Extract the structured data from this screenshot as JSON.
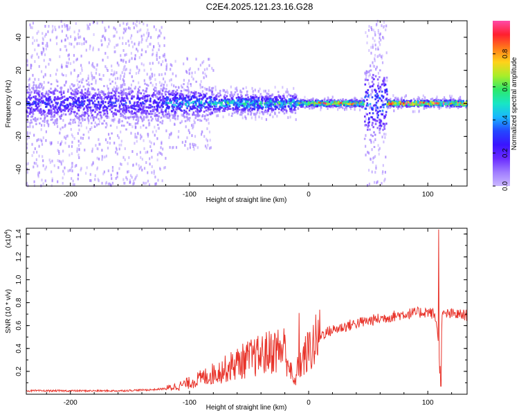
{
  "title": "C2E4.2025.121.23.16.G28",
  "colors": {
    "snr_line": "#e8332a",
    "spectrum_bg": "#ffffff",
    "colormap": [
      "#cbb8ff",
      "#a07dff",
      "#6a2bff",
      "#3a14ff",
      "#2347ff",
      "#19b6ff",
      "#18e6c4",
      "#2ee86a",
      "#a8ee2a",
      "#ffd21a",
      "#ff7a1a",
      "#ff1f2f",
      "#ff4aa8"
    ]
  },
  "chart_data": [
    {
      "type": "heatmap",
      "xlabel": "Height of straight line (km)",
      "ylabel": "Frequency (Hz)",
      "xlim": [
        -237,
        133
      ],
      "ylim": [
        -50,
        50
      ],
      "x_ticks": [
        -200,
        -100,
        0,
        100
      ],
      "x_tick_labels": [
        "-200",
        "-100",
        "0",
        "100"
      ],
      "y_ticks": [
        -40,
        -20,
        0,
        20,
        40
      ],
      "y_tick_labels": [
        "-40",
        "-20",
        "0",
        "20",
        "40"
      ],
      "colorbar": {
        "label": "Normalized spectral amplitude",
        "range": [
          0.0,
          1.0
        ],
        "ticks": [
          0.0,
          0.2,
          0.4,
          0.6,
          0.8
        ],
        "tick_labels": [
          "0.0",
          "0.2",
          "0.4",
          "0.6",
          "0.8"
        ]
      },
      "segments": [
        {
          "x_range": [
            -237,
            -120
          ],
          "core_halfwidth_hz": 10,
          "scatter_halfwidth_hz": 50,
          "peak_amplitude": 0.3
        },
        {
          "x_range": [
            -120,
            -80
          ],
          "core_halfwidth_hz": 8,
          "scatter_halfwidth_hz": 28,
          "peak_amplitude": 0.45
        },
        {
          "x_range": [
            -80,
            -10
          ],
          "core_halfwidth_hz": 5,
          "scatter_halfwidth_hz": 10,
          "peak_amplitude": 0.55
        },
        {
          "x_range": [
            -10,
            47
          ],
          "core_halfwidth_hz": 2,
          "scatter_halfwidth_hz": 4,
          "peak_amplitude": 0.9
        },
        {
          "x_range": [
            47,
            66
          ],
          "core_halfwidth_hz": 20,
          "scatter_halfwidth_hz": 50,
          "peak_amplitude": 0.4
        },
        {
          "x_range": [
            66,
            133
          ],
          "core_halfwidth_hz": 2,
          "scatter_halfwidth_hz": 5,
          "peak_amplitude": 0.95
        }
      ],
      "grid": false
    },
    {
      "type": "line",
      "xlabel": "Height of straight line (km)",
      "ylabel": "SNR (10 * v/v)",
      "y_multiplier_label": "(x10",
      "y_multiplier_exponent": "4",
      "y_multiplier_suffix": ")",
      "xlim": [
        -237,
        133
      ],
      "ylim": [
        0,
        1.45
      ],
      "x_ticks": [
        -200,
        -100,
        0,
        100
      ],
      "x_tick_labels": [
        "-200",
        "-100",
        "0",
        "100"
      ],
      "y_ticks": [
        0.2,
        0.4,
        0.6,
        0.8,
        1.0,
        1.2,
        1.4
      ],
      "y_tick_labels": [
        "0.2",
        "0.4",
        "0.6",
        "0.8",
        "1.0",
        "1.2",
        "1.4"
      ],
      "series": [
        {
          "x": [
            -237,
            -200,
            -160,
            -130,
            -120,
            -110,
            -100,
            -90,
            -80,
            -70,
            -60,
            -50,
            -40,
            -30,
            -20,
            -12,
            -10,
            -5,
            0,
            5,
            10,
            20,
            30,
            40,
            50,
            60,
            70,
            80,
            90,
            100,
            105,
            108,
            110,
            112,
            115,
            120,
            133
          ],
          "y": [
            0.03,
            0.03,
            0.03,
            0.04,
            0.05,
            0.07,
            0.1,
            0.14,
            0.18,
            0.22,
            0.27,
            0.31,
            0.34,
            0.38,
            0.4,
            0.08,
            0.2,
            0.3,
            0.38,
            0.44,
            0.52,
            0.56,
            0.59,
            0.62,
            0.64,
            0.66,
            0.68,
            0.7,
            0.71,
            0.72,
            0.7,
            0.6,
            0.2,
            0.68,
            0.7,
            0.7,
            0.69
          ],
          "spikes": [
            {
              "x": 109,
              "y": 1.44
            },
            {
              "x": 111,
              "y": 0.07
            },
            {
              "x": -8,
              "y": 0.71
            },
            {
              "x": 8,
              "y": 0.65
            },
            {
              "x": -20,
              "y": 0.52
            }
          ]
        }
      ],
      "grid": false
    }
  ]
}
